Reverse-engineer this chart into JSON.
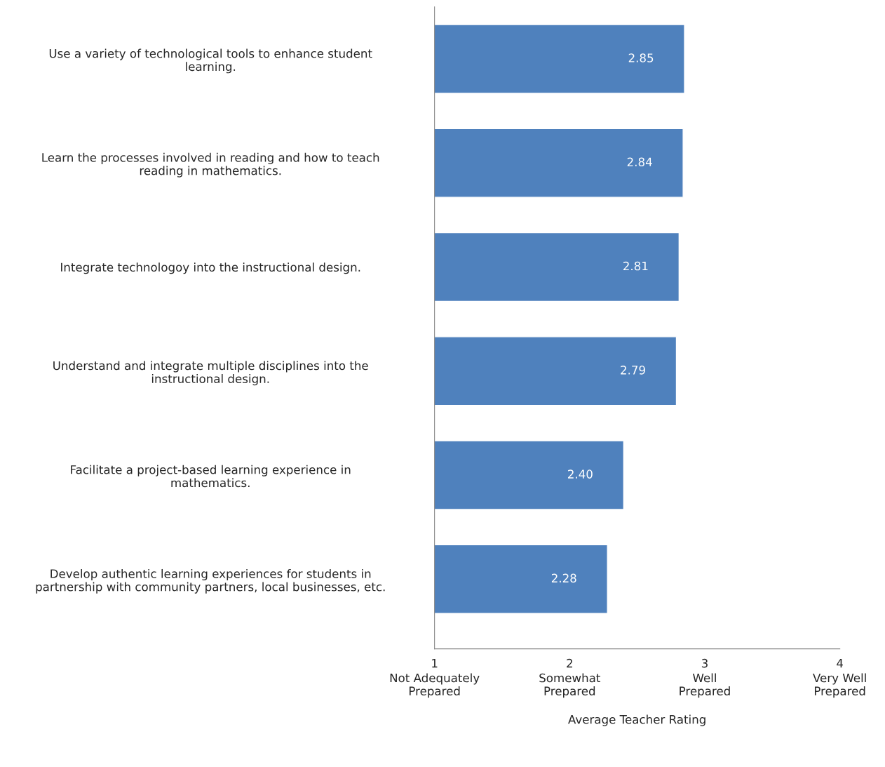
{
  "chart_data": {
    "type": "bar",
    "orientation": "horizontal",
    "categories": [
      "Use a variety of technological tools to enhance student\nlearning.",
      "Learn the processes involved in reading and how to teach\nreading in mathematics.",
      "Integrate technologoy into the instructional design.",
      "Understand and integrate multiple disciplines into the\ninstructional design.",
      "Facilitate a project-based learning experience in\nmathematics.",
      "Develop authentic learning experiences for students in\npartnership with community partners, local businesses, etc."
    ],
    "values": [
      2.85,
      2.84,
      2.81,
      2.79,
      2.4,
      2.28
    ],
    "value_labels": [
      "2.85",
      "2.84",
      "2.81",
      "2.79",
      "2.40",
      "2.28"
    ],
    "color": "#4f81bd",
    "xlim": [
      1,
      4
    ],
    "xticks": [
      1,
      2,
      3,
      4
    ],
    "annotations": [
      "Not Adequately\nPrepared",
      "Somewhat\nPrepared",
      "Well\nPrepared",
      "Very Well\nPrepared"
    ],
    "xlabel": "Average Teacher Rating",
    "grid": false,
    "legend": false
  }
}
